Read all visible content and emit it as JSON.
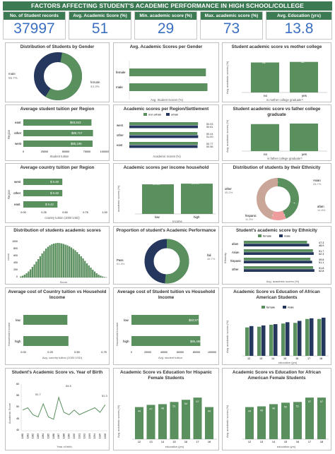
{
  "title": "FACTORS AFFECTING STUDENT'S ACADEMIC PERFORMANCE IN HIGH SCHOOL/COLLEGE",
  "colors": {
    "green": "#5a8f5e",
    "navy": "#25375c",
    "pink": "#ef9c9c",
    "tan": "#c9a698",
    "accent": "#3c7a54",
    "kpi_value": "#3a6fc2"
  },
  "kpis": [
    {
      "label": "No. of Student records",
      "value": "37997"
    },
    {
      "label": "Avg. Academic Score (%)",
      "value": "51"
    },
    {
      "label": "Min. academic score (%)",
      "value": "29"
    },
    {
      "label": "Max. academic score (%)",
      "value": "73"
    },
    {
      "label": "Avg. Education (yrs)",
      "value": "13.8"
    }
  ],
  "p_gender": {
    "title": "Distribution of Students by Gender",
    "labels": [
      "male",
      "female"
    ],
    "pcts": [
      "55.7%",
      "44.3%"
    ]
  },
  "p_avg_gender": {
    "title": "Avg. Academic Scores per Gender",
    "categories": [
      "female",
      "male"
    ],
    "values": [
      "50",
      "51"
    ],
    "xlabel": "Avg. Student Scores (%)",
    "ticks": [
      "0",
      "10",
      "20",
      "30",
      "40",
      "50",
      "60"
    ]
  },
  "p_mother": {
    "title": "Student academic score vs mother college",
    "categories": [
      "no",
      "yes"
    ],
    "values": [
      "51",
      "52"
    ],
    "xlabel": "is mother college graduate?",
    "ylabel": "Avg. academic scores (%)",
    "ticks": [
      "0",
      "10",
      "20",
      "30",
      "40",
      "50",
      "60"
    ]
  },
  "p_tuition_region": {
    "title": "Average student tuition per Region",
    "categories": [
      "east",
      "other",
      "west"
    ],
    "values": [
      "$83,843",
      "$85,717",
      "$85,199"
    ],
    "xlabel": "Student tuition",
    "ylabel": "Region",
    "ticks": [
      "0",
      "25000",
      "50000",
      "75000",
      "100000"
    ]
  },
  "p_region_settlement": {
    "title": "Academic scores per Region/Settlement",
    "legend": [
      "non urban",
      "urban"
    ],
    "categories": [
      "west",
      "other",
      "east"
    ],
    "labels": [
      "50.93",
      "50.81",
      "50.44",
      "51.00",
      "50.77",
      "50.56"
    ],
    "xlabel": "Academic scores (%)",
    "ticks": [
      "0",
      "10",
      "20",
      "30",
      "40",
      "50"
    ]
  },
  "p_father": {
    "title": "Student academic score vs father college graduate",
    "categories": [
      "no",
      "yes"
    ],
    "values": [
      "51",
      "52"
    ],
    "xlabel": "is father college graduate?",
    "ylabel": "Avg. academic scores (%)",
    "ticks": [
      "0",
      "10",
      "20",
      "30",
      "40",
      "50",
      "60"
    ]
  },
  "p_country_region": {
    "title": "Average country tuition per Region",
    "categories": [
      "west",
      "other",
      "east"
    ],
    "values": [
      "$ 0.48",
      "$ 0.48",
      "$ 0.42"
    ],
    "xlabel": "country tuition (1000 USD)",
    "ylabel": "Region",
    "ticks": [
      "0.00",
      "0.25",
      "0.50",
      "0.75",
      "1.00"
    ]
  },
  "p_income": {
    "title": "Academic scores per income household",
    "categories": [
      "low",
      "high"
    ],
    "values": [
      "50.33",
      "51.48"
    ],
    "xlabel": "Income",
    "ylabel": "academic scores (%)",
    "ticks": [
      "0",
      "10",
      "20",
      "30",
      "40",
      "50",
      "60"
    ]
  },
  "p_ethnicity": {
    "title": "Distribution of students by their Ethnicity",
    "labels": [
      "Asian",
      "afam",
      "hispanic",
      "other"
    ],
    "pcts": [
      "28.7%",
      "14.8%",
      "11.3%",
      "45.2%"
    ]
  },
  "p_dist": {
    "title": "Distribution of students academic scores",
    "ylabel": "count",
    "xlabel": "Score",
    "ticks": [
      "0",
      "200",
      "400",
      "600",
      "800",
      "1000"
    ]
  },
  "p_proportion": {
    "title": "Proportion of student's Academic Performance",
    "labels": [
      "Pass",
      "fail"
    ],
    "pcts": [
      "51.3%",
      "48.7%"
    ]
  },
  "p_eth_score": {
    "title": "Student's academic score by Ethnicity",
    "legend": [
      "female",
      "male"
    ],
    "categories": [
      "afam",
      "Asian",
      "hispanic",
      "other"
    ],
    "labels": [
      "47.3",
      "48.9",
      "51.7",
      "52.3",
      "49.8",
      "51.1",
      "51.8",
      "52.8"
    ],
    "xlabel": "Avg. academic scores (%)",
    "ylabel": "Ethnicity",
    "ticks": [
      "0",
      "10",
      "20",
      "30",
      "40",
      "50"
    ]
  },
  "p_country_income": {
    "title": "Average cost of Country tuition vs Household Income",
    "categories": [
      "low",
      "high"
    ],
    "values": [
      "$ 0.41",
      "$ 0.42"
    ],
    "xlabel": "Avg. country tuition (1000 USD)",
    "ylabel": "Household Income",
    "ticks": [
      "0.00",
      "0.25",
      "0.50",
      "0.75"
    ]
  },
  "p_student_income": {
    "title": "Average cost of Student tuition vs Household Income",
    "categories": [
      "low",
      "high"
    ],
    "values": [
      "$83,571",
      "$85,486"
    ],
    "xlabel": "Avg. student tuition",
    "ylabel": "Household Income",
    "ticks": [
      "0",
      "20000",
      "40000",
      "60000",
      "80000",
      "100000"
    ]
  },
  "p_afam": {
    "title": "Academic Score vs Education of African American Students",
    "legend": [
      "female",
      "male"
    ],
    "ylabel": "Avg. academic scores (%)",
    "xlabel": "education (yrs)",
    "categories": [
      "12",
      "13",
      "14",
      "15",
      "16",
      "17",
      "18"
    ],
    "ticks": [
      "0",
      "10",
      "20",
      "30",
      "40",
      "50",
      "60"
    ]
  },
  "p_birth": {
    "title": "Student's Academic Score vs. Year of Birth",
    "ylabel": "Academic Score",
    "xlabel": "Year of birth",
    "labels": [
      "54.5",
      "51.7",
      "51.3"
    ],
    "ticks_x": [
      "1980",
      "1981",
      "1982",
      "1983",
      "1984",
      "1985",
      "1986",
      "1987",
      "1988",
      "1989",
      "1990",
      "1991",
      "1992",
      "1993",
      "1994",
      "1995",
      "1996"
    ],
    "ticks_y": [
      "40",
      "45",
      "50",
      "55",
      "60"
    ]
  },
  "p_hispanic": {
    "title": "Academic Score vs Education for Hispanic Female Students",
    "categories": [
      "12",
      "13",
      "14",
      "15",
      "16",
      "17",
      "18"
    ],
    "values": [
      "44",
      "47",
      "48",
      "51",
      "54",
      "57",
      "44"
    ],
    "ylabel": "Avg. academic scores (%)",
    "xlabel": "education (yrs)",
    "ticks": [
      "0",
      "10",
      "20",
      "30",
      "40",
      "50",
      "60"
    ]
  },
  "p_afam_female": {
    "title": "Academic Score vs Education for African American Female Students",
    "categories": [
      "12",
      "13",
      "14",
      "15",
      "16",
      "17",
      "18"
    ],
    "values": [
      "44",
      "45",
      "48",
      "50",
      "51",
      "57",
      "57"
    ],
    "ylabel": "Avg. academic scores (%)",
    "xlabel": "education (yrs)",
    "ticks": [
      "0",
      "10",
      "20",
      "30",
      "40",
      "50",
      "60"
    ]
  },
  "chart_data": [
    {
      "type": "pie",
      "title": "Distribution of Students by Gender",
      "labels": [
        "male",
        "female"
      ],
      "values": [
        55.7,
        44.3
      ]
    },
    {
      "type": "bar",
      "title": "Avg. Academic Scores per Gender",
      "categories": [
        "female",
        "male"
      ],
      "values": [
        50,
        51
      ],
      "xlabel": "Avg. Student Scores (%)",
      "xlim": [
        0,
        60
      ]
    },
    {
      "type": "bar",
      "title": "Student academic score vs mother college",
      "categories": [
        "no",
        "yes"
      ],
      "values": [
        51,
        52
      ],
      "xlabel": "is mother college graduate?",
      "ylabel": "Avg. academic scores (%)",
      "ylim": [
        0,
        60
      ]
    },
    {
      "type": "bar",
      "title": "Average student tuition per Region",
      "categories": [
        "east",
        "other",
        "west"
      ],
      "values": [
        83843,
        85717,
        85199
      ],
      "xlabel": "Student tuition",
      "ylabel": "Region",
      "xlim": [
        0,
        100000
      ]
    },
    {
      "type": "bar",
      "title": "Academic scores per Region/Settlement",
      "categories": [
        "west",
        "other",
        "east"
      ],
      "series": [
        {
          "name": "non urban",
          "values": [
            50.93,
            50.44,
            50.77
          ]
        },
        {
          "name": "urban",
          "values": [
            50.81,
            51.0,
            50.56
          ]
        }
      ],
      "xlabel": "Academic scores (%)",
      "xlim": [
        0,
        55
      ]
    },
    {
      "type": "bar",
      "title": "Student academic score vs father college graduate",
      "categories": [
        "no",
        "yes"
      ],
      "values": [
        51,
        52
      ],
      "xlabel": "is father college graduate?",
      "ylabel": "Avg. academic scores (%)",
      "ylim": [
        0,
        60
      ]
    },
    {
      "type": "bar",
      "title": "Average country tuition per Region",
      "categories": [
        "west",
        "other",
        "east"
      ],
      "values": [
        0.48,
        0.48,
        0.42
      ],
      "xlabel": "country tuition (1000 USD)",
      "ylabel": "Region",
      "xlim": [
        0,
        1
      ]
    },
    {
      "type": "bar",
      "title": "Academic scores per income household",
      "categories": [
        "low",
        "high"
      ],
      "values": [
        50.33,
        51.48
      ],
      "xlabel": "Income",
      "ylabel": "academic scores (%)",
      "ylim": [
        0,
        60
      ]
    },
    {
      "type": "pie",
      "title": "Distribution of students by their Ethnicity",
      "labels": [
        "Asian",
        "afam",
        "hispanic",
        "other"
      ],
      "values": [
        28.7,
        14.8,
        11.3,
        45.2
      ]
    },
    {
      "type": "bar",
      "title": "Distribution of students academic scores",
      "x": [
        29,
        30,
        31,
        32,
        33,
        34,
        35,
        36,
        37,
        38,
        39,
        40,
        41,
        42,
        43,
        44,
        45,
        46,
        47,
        48,
        49,
        50,
        51,
        52,
        53,
        54,
        55,
        56,
        57,
        58,
        59,
        60,
        61,
        62,
        63,
        64,
        65,
        66,
        67,
        68,
        69,
        70,
        71,
        72,
        73
      ],
      "values": [
        30,
        50,
        80,
        120,
        170,
        230,
        300,
        370,
        450,
        520,
        600,
        680,
        750,
        820,
        870,
        910,
        940,
        960,
        970,
        980,
        975,
        965,
        950,
        930,
        910,
        880,
        850,
        810,
        770,
        720,
        660,
        600,
        540,
        470,
        400,
        340,
        280,
        220,
        170,
        120,
        80,
        50,
        30,
        15,
        5
      ],
      "ylabel": "count",
      "xlabel": "Score",
      "ylim": [
        0,
        1000
      ]
    },
    {
      "type": "pie",
      "title": "Proportion of student's Academic Performance",
      "labels": [
        "Pass",
        "fail"
      ],
      "values": [
        51.3,
        48.7
      ]
    },
    {
      "type": "bar",
      "title": "Student's academic score by Ethnicity",
      "categories": [
        "afam",
        "Asian",
        "hispanic",
        "other"
      ],
      "series": [
        {
          "name": "female",
          "values": [
            47.3,
            51.7,
            49.8,
            51.8
          ]
        },
        {
          "name": "male",
          "values": [
            48.9,
            52.3,
            51.1,
            52.8
          ]
        }
      ],
      "xlabel": "Avg. academic scores (%)",
      "ylabel": "Ethnicity",
      "xlim": [
        0,
        55
      ]
    },
    {
      "type": "bar",
      "title": "Average cost of Country tuition vs Household Income",
      "categories": [
        "low",
        "high"
      ],
      "values": [
        0.41,
        0.42
      ],
      "xlabel": "Avg. country tuition (1000 USD)",
      "ylabel": "Household Income",
      "xlim": [
        0,
        0.75
      ]
    },
    {
      "type": "bar",
      "title": "Average cost of Student tuition vs Household Income",
      "categories": [
        "low",
        "high"
      ],
      "values": [
        83571,
        85486
      ],
      "xlabel": "Avg. student tuition",
      "ylabel": "Household Income",
      "xlim": [
        0,
        100000
      ]
    },
    {
      "type": "bar",
      "title": "Academic Score vs Education of African American Students",
      "categories": [
        "12",
        "13",
        "14",
        "15",
        "16",
        "17",
        "18"
      ],
      "series": [
        {
          "name": "female",
          "values": [
            44,
            45,
            48,
            50,
            51,
            57,
            57
          ]
        },
        {
          "name": "male",
          "values": [
            46,
            47,
            49,
            52,
            54,
            58,
            59
          ]
        }
      ],
      "xlabel": "education (yrs)",
      "ylabel": "Avg. academic scores (%)",
      "ylim": [
        0,
        60
      ]
    },
    {
      "type": "line",
      "title": "Student's Academic Score vs. Year of Birth",
      "x": [
        1980,
        1981,
        1982,
        1983,
        1984,
        1985,
        1986,
        1987,
        1988,
        1989,
        1990,
        1991,
        1992,
        1993,
        1994,
        1995,
        1996
      ],
      "values": [
        49,
        50,
        47,
        46,
        51.7,
        46,
        45,
        54.5,
        48,
        47,
        49,
        47,
        48,
        49,
        50,
        48,
        51.3
      ],
      "xlabel": "Year of birth",
      "ylabel": "Academic Score",
      "ylim": [
        40,
        60
      ]
    },
    {
      "type": "bar",
      "title": "Academic Score vs Education for Hispanic Female Students",
      "categories": [
        "12",
        "13",
        "14",
        "15",
        "16",
        "17",
        "18"
      ],
      "values": [
        44,
        47,
        48,
        51,
        54,
        57,
        44
      ],
      "xlabel": "education (yrs)",
      "ylabel": "Avg. academic scores (%)",
      "ylim": [
        0,
        60
      ]
    },
    {
      "type": "bar",
      "title": "Academic Score vs Education for African American Female Students",
      "categories": [
        "12",
        "13",
        "14",
        "15",
        "16",
        "17",
        "18"
      ],
      "values": [
        44,
        45,
        48,
        50,
        51,
        57,
        57
      ],
      "xlabel": "education (yrs)",
      "ylabel": "Avg. academic scores (%)",
      "ylim": [
        0,
        60
      ]
    }
  ]
}
